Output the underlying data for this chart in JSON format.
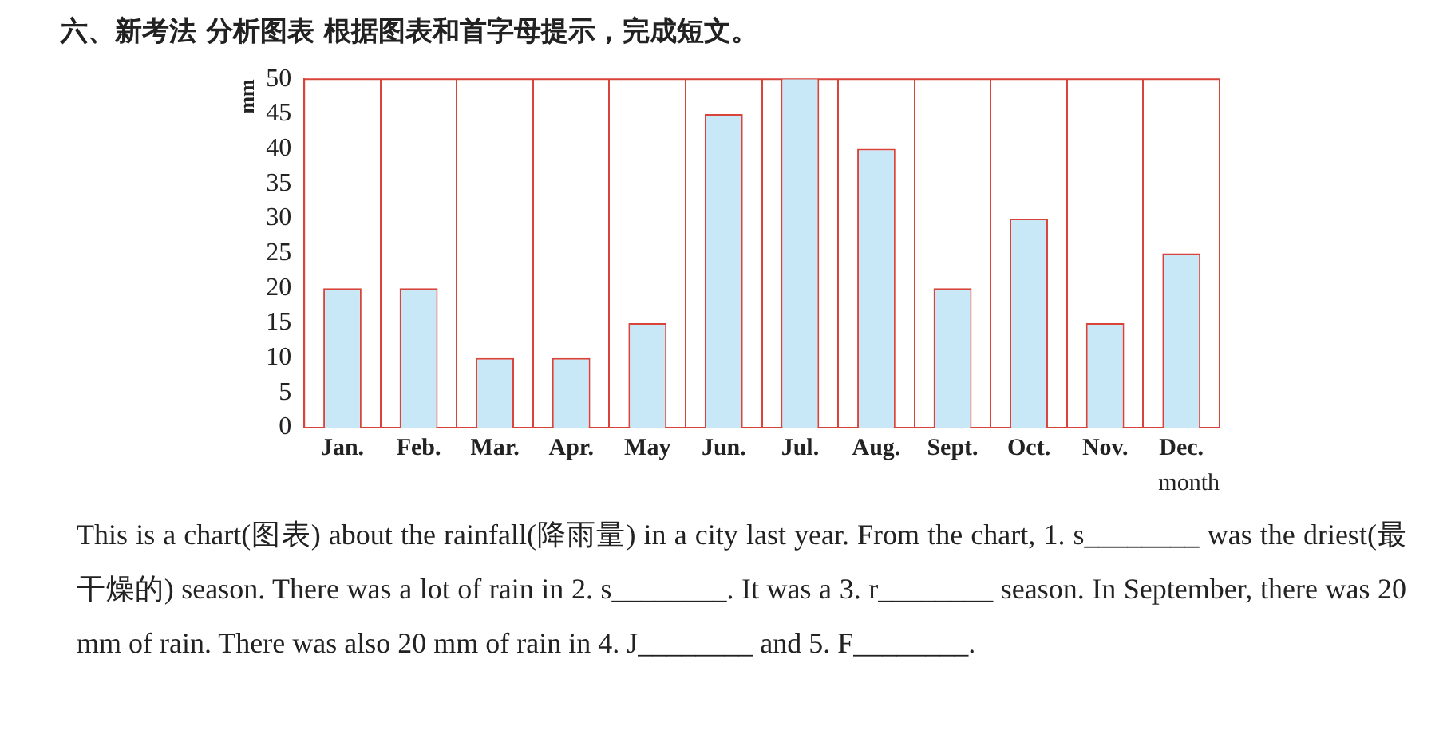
{
  "chart_data": {
    "type": "bar",
    "title": "六、新考法 分析图表 根据图表和首字母提示，完成短文。",
    "categories": [
      "Jan.",
      "Feb.",
      "Mar.",
      "Apr.",
      "May",
      "Jun.",
      "Jul.",
      "Aug.",
      "Sept.",
      "Oct.",
      "Nov.",
      "Dec."
    ],
    "values": [
      20,
      20,
      10,
      10,
      15,
      45,
      50,
      40,
      20,
      30,
      15,
      25
    ],
    "color": "#c8e8f8",
    "ylim": [
      0,
      50
    ],
    "yticks": [
      0,
      5,
      10,
      15,
      20,
      25,
      30,
      35,
      40,
      45,
      50
    ],
    "ylabel": "mm",
    "xlabel": "month",
    "grid": "x",
    "annotations": [
      "This is a chart(图表) about the rainfall(降雨量) in a city last year. From the chart, 1. s________ was the driest(最干燥的) season. There was a lot of rain in 2. s________. It was a 3. r________ season. In September, there was 20 mm of rain. There was also 20 mm of rain in 4. J________ and 5. F________."
    ]
  }
}
